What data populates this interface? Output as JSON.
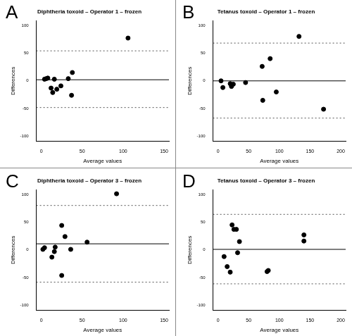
{
  "chart_data": [
    {
      "type": "scatter",
      "panel": "A",
      "title": "Diphtheria toxoid – Operator 1 – frozen",
      "x_label": "Average values",
      "y_label": "Differences",
      "x": [
        4,
        6,
        8,
        12,
        14,
        16,
        19,
        24,
        33,
        37,
        38,
        106
      ],
      "values": [
        3,
        4,
        5,
        -13,
        -21,
        3,
        -15,
        -9,
        4,
        -26,
        15,
        77
      ],
      "mean_difference": 2,
      "limits_of_agreement": [
        -48,
        54
      ],
      "xlim": [
        -6,
        156
      ],
      "ylim": [
        -108,
        108
      ],
      "xticks": [
        0,
        50,
        100,
        150
      ],
      "yticks": [
        -100,
        -50,
        0,
        50,
        100
      ],
      "color": "#000000",
      "marker": "circle",
      "grid": false
    },
    {
      "type": "scatter",
      "panel": "B",
      "title": "Tetanus toxoid – Operator 1 – frozen",
      "x_label": "Average values",
      "y_label": "Differences",
      "x": [
        5,
        8,
        20,
        22,
        25,
        45,
        72,
        73,
        85,
        95,
        132,
        172
      ],
      "values": [
        0,
        -12,
        -5,
        -10,
        -6,
        -3,
        26,
        -35,
        40,
        -20,
        80,
        -51
      ],
      "mean_difference": 0,
      "limits_of_agreement": [
        -67,
        68
      ],
      "xlim": [
        -8,
        208
      ],
      "ylim": [
        -108,
        108
      ],
      "xticks": [
        0,
        50,
        100,
        150,
        200
      ],
      "yticks": [
        -100,
        -50,
        0,
        50,
        100
      ],
      "color": "#000000",
      "marker": "circle",
      "grid": false
    },
    {
      "type": "scatter",
      "panel": "C",
      "title": "Diphtheria toxoid – Operator 3 – frozen",
      "x_label": "Average values",
      "y_label": "Differences",
      "x": [
        2,
        4,
        13,
        16,
        17,
        25,
        25,
        29,
        36,
        56,
        92
      ],
      "values": [
        1,
        4,
        -13,
        -3,
        5,
        44,
        -46,
        24,
        1,
        14,
        101
      ],
      "mean_difference": 11,
      "limits_of_agreement": [
        -58,
        80
      ],
      "xlim": [
        -6,
        156
      ],
      "ylim": [
        -108,
        108
      ],
      "xticks": [
        0,
        50,
        100,
        150
      ],
      "yticks": [
        -100,
        -50,
        0,
        50,
        100
      ],
      "color": "#000000",
      "marker": "circle",
      "grid": false
    },
    {
      "type": "scatter",
      "panel": "D",
      "title": "Tetanus toxoid – Operator 3 – frozen",
      "x_label": "Average values",
      "y_label": "Differences",
      "x": [
        10,
        15,
        20,
        23,
        26,
        30,
        32,
        35,
        80,
        82,
        140,
        140
      ],
      "values": [
        -12,
        -30,
        -40,
        45,
        37,
        37,
        -5,
        15,
        -39,
        -37,
        27,
        16
      ],
      "mean_difference": 1,
      "limits_of_agreement": [
        -61,
        64
      ],
      "xlim": [
        -8,
        208
      ],
      "ylim": [
        -108,
        108
      ],
      "xticks": [
        0,
        50,
        100,
        150,
        200
      ],
      "yticks": [
        -100,
        -50,
        0,
        50,
        100
      ],
      "color": "#000000",
      "marker": "circle",
      "grid": false
    }
  ]
}
